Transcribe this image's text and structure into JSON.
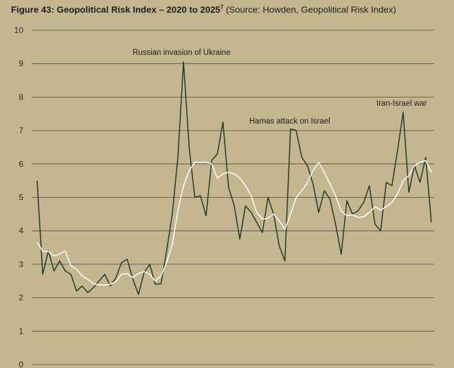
{
  "header": {
    "title_bold": "Figure 43: Geopolitical Risk Index – 2020 to 2025",
    "title_sup": "7",
    "title_rest": " (Source: Howden, Geopolitical Risk Index)"
  },
  "colors": {
    "background": "#c4b68e",
    "grid": "#4a4a40",
    "monthly_series": "#1f3b2c",
    "average_series": "#ffffff"
  },
  "chart_data": {
    "type": "line",
    "title": "Figure 43: Geopolitical Risk Index – 2020 to 2025",
    "xlabel": "",
    "ylabel": "",
    "ylim": [
      0,
      10
    ],
    "yticks": [
      "0",
      "1",
      "2",
      "3",
      "4",
      "5",
      "6",
      "7",
      "8",
      "9",
      "10"
    ],
    "grid": true,
    "annotations": [
      {
        "text": "Russian invasion of Ukraine",
        "x": 28
      },
      {
        "text": "Hamas attack on Israel",
        "x": 46
      },
      {
        "text": "Iran-Israel war",
        "x": 69
      }
    ],
    "series": [
      {
        "values": [
          5.5,
          2.7,
          3.4,
          2.8,
          3.1,
          2.8,
          2.7,
          2.2,
          2.35,
          2.15,
          2.3,
          2.5,
          2.7,
          2.35,
          2.6,
          3.05,
          3.15,
          2.55,
          2.1,
          2.75,
          3.0,
          2.4,
          2.42,
          3.4,
          4.5,
          6.2,
          9.05,
          6.5,
          5.0,
          5.05,
          4.45,
          6.1,
          6.3,
          7.25,
          5.3,
          4.75,
          3.75,
          4.75,
          4.55,
          4.25,
          3.95,
          5.0,
          4.5,
          3.55,
          3.1,
          7.05,
          7.0,
          6.2,
          5.95,
          5.4,
          4.55,
          5.2,
          4.95,
          4.2,
          3.3,
          4.9,
          4.5,
          4.6,
          4.85,
          5.35,
          4.2,
          4.0,
          5.45,
          5.35,
          6.4,
          7.55,
          5.15,
          5.95,
          5.45,
          6.2,
          4.25
        ]
      },
      {
        "values": [
          3.65,
          3.4,
          3.38,
          3.25,
          3.3,
          3.4,
          2.95,
          2.85,
          2.65,
          2.55,
          2.42,
          2.38,
          2.38,
          2.4,
          2.48,
          2.7,
          2.72,
          2.6,
          2.72,
          2.78,
          2.7,
          2.5,
          2.65,
          3.05,
          3.6,
          4.6,
          5.35,
          5.8,
          6.05,
          6.05,
          6.05,
          6.0,
          5.58,
          5.7,
          5.75,
          5.7,
          5.58,
          5.35,
          5.05,
          4.55,
          4.35,
          4.38,
          4.5,
          4.3,
          4.05,
          4.5,
          5.0,
          5.2,
          5.45,
          5.8,
          6.05,
          5.75,
          5.4,
          5.05,
          4.6,
          4.45,
          4.48,
          4.4,
          4.42,
          4.55,
          4.72,
          4.62,
          4.72,
          4.85,
          5.1,
          5.5,
          5.65,
          5.95,
          6.05,
          6.1,
          5.75
        ]
      }
    ]
  }
}
